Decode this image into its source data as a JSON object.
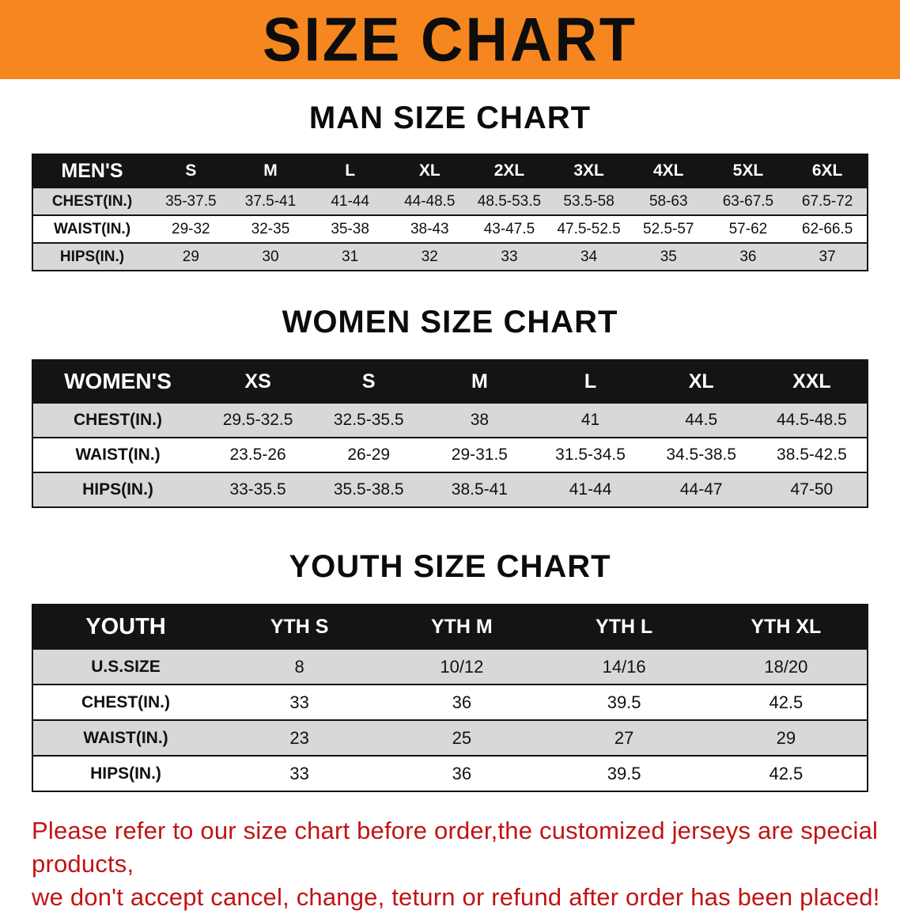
{
  "banner": {
    "title": "SIZE CHART",
    "bg_color": "#f6861f",
    "text_color": "#0d0d0d"
  },
  "men": {
    "heading": "MAN SIZE CHART",
    "table": {
      "header": [
        "MEN'S",
        "S",
        "M",
        "L",
        "XL",
        "2XL",
        "3XL",
        "4XL",
        "5XL",
        "6XL"
      ],
      "rows": [
        {
          "label": "CHEST(IN.)",
          "values": [
            "35-37.5",
            "37.5-41",
            "41-44",
            "44-48.5",
            "48.5-53.5",
            "53.5-58",
            "58-63",
            "63-67.5",
            "67.5-72"
          ]
        },
        {
          "label": "WAIST(IN.)",
          "values": [
            "29-32",
            "32-35",
            "35-38",
            "38-43",
            "43-47.5",
            "47.5-52.5",
            "52.5-57",
            "57-62",
            "62-66.5"
          ]
        },
        {
          "label": "HIPS(IN.)",
          "values": [
            "29",
            "30",
            "31",
            "32",
            "33",
            "34",
            "35",
            "36",
            "37"
          ]
        }
      ]
    }
  },
  "women": {
    "heading": "WOMEN SIZE CHART",
    "table": {
      "header": [
        "WOMEN'S",
        "XS",
        "S",
        "M",
        "L",
        "XL",
        "XXL"
      ],
      "rows": [
        {
          "label": "CHEST(IN.)",
          "values": [
            "29.5-32.5",
            "32.5-35.5",
            "38",
            "41",
            "44.5",
            "44.5-48.5"
          ]
        },
        {
          "label": "WAIST(IN.)",
          "values": [
            "23.5-26",
            "26-29",
            "29-31.5",
            "31.5-34.5",
            "34.5-38.5",
            "38.5-42.5"
          ]
        },
        {
          "label": "HIPS(IN.)",
          "values": [
            "33-35.5",
            "35.5-38.5",
            "38.5-41",
            "41-44",
            "44-47",
            "47-50"
          ]
        }
      ]
    }
  },
  "youth": {
    "heading": "YOUTH SIZE CHART",
    "table": {
      "header": [
        "YOUTH",
        "YTH S",
        "YTH M",
        "YTH L",
        "YTH XL"
      ],
      "rows": [
        {
          "label": "U.S.SIZE",
          "values": [
            "8",
            "10/12",
            "14/16",
            "18/20"
          ]
        },
        {
          "label": "CHEST(IN.)",
          "values": [
            "33",
            "36",
            "39.5",
            "42.5"
          ]
        },
        {
          "label": "WAIST(IN.)",
          "values": [
            "23",
            "25",
            "27",
            "29"
          ]
        },
        {
          "label": "HIPS(IN.)",
          "values": [
            "33",
            "36",
            "39.5",
            "42.5"
          ]
        }
      ]
    }
  },
  "footer": {
    "lines": [
      "Please refer to our size chart before order,the customized jerseys are special products,",
      "we don't accept cancel, change, teturn or refund after order has been placed!"
    ],
    "color": "#c01414"
  }
}
